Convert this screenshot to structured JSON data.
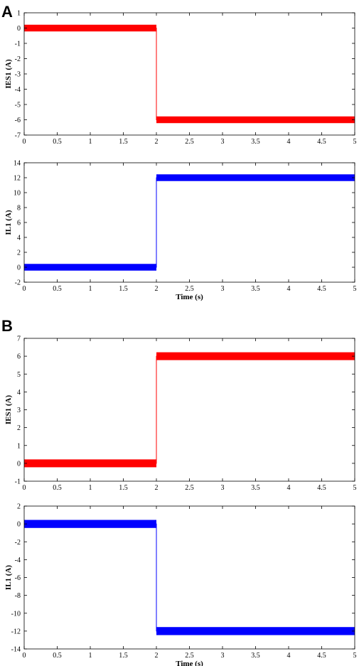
{
  "panel_labels": [
    "A",
    "B"
  ],
  "colors": {
    "red": "#ff0000",
    "blue": "#0000ff"
  },
  "chart_data": [
    {
      "type": "line",
      "panel": "A",
      "xlabel": "",
      "ylabel": "IES1 (A)",
      "xlim": [
        0,
        5
      ],
      "ylim": [
        -7,
        1
      ],
      "xticks": [
        "0",
        "0.5",
        "1",
        "1.5",
        "2",
        "2.5",
        "3",
        "3.5",
        "4",
        "4.5",
        "5"
      ],
      "yticks": [
        "1",
        "0",
        "-1",
        "-2",
        "-3",
        "-4",
        "-5",
        "-6",
        "-7"
      ],
      "grid": false,
      "series": [
        {
          "color": "#ff0000",
          "x": [
            0,
            2,
            2,
            5
          ],
          "y": [
            0,
            0,
            -6,
            -6
          ],
          "ripple": 0.22
        }
      ]
    },
    {
      "type": "line",
      "panel": "A",
      "xlabel": "Time (s)",
      "ylabel": "IL1 (A)",
      "xlim": [
        0,
        5
      ],
      "ylim": [
        -2,
        14
      ],
      "xticks": [
        "0",
        "0.5",
        "1",
        "1.5",
        "2",
        "2.5",
        "3",
        "3.5",
        "4",
        "4.5",
        "5"
      ],
      "yticks": [
        "14",
        "12",
        "10",
        "8",
        "6",
        "4",
        "2",
        "0",
        "-2"
      ],
      "grid": false,
      "series": [
        {
          "color": "#0000ff",
          "x": [
            0,
            2,
            2,
            5
          ],
          "y": [
            0,
            0,
            12,
            12
          ],
          "ripple": 0.45
        }
      ]
    },
    {
      "type": "line",
      "panel": "B",
      "xlabel": "",
      "ylabel": "IES1 (A)",
      "xlim": [
        0,
        5
      ],
      "ylim": [
        -1,
        7
      ],
      "xticks": [
        "0",
        "0.5",
        "1",
        "1.5",
        "2",
        "2.5",
        "3",
        "3.5",
        "4",
        "4.5",
        "5"
      ],
      "yticks": [
        "7",
        "6",
        "5",
        "4",
        "3",
        "2",
        "1",
        "0",
        "-1"
      ],
      "grid": false,
      "series": [
        {
          "color": "#ff0000",
          "x": [
            0,
            2,
            2,
            5
          ],
          "y": [
            0,
            0,
            6,
            6
          ],
          "ripple": 0.22
        }
      ]
    },
    {
      "type": "line",
      "panel": "B",
      "xlabel": "Time (s)",
      "ylabel": "IL1 (A)",
      "xlim": [
        0,
        5
      ],
      "ylim": [
        -14,
        2
      ],
      "xticks": [
        "0",
        "0.5",
        "1",
        "1.5",
        "2",
        "2.5",
        "3",
        "3.5",
        "4",
        "4.5",
        "5"
      ],
      "yticks": [
        "2",
        "0",
        "-2",
        "-4",
        "-6",
        "-8",
        "-10",
        "-12",
        "-14"
      ],
      "grid": false,
      "series": [
        {
          "color": "#0000ff",
          "x": [
            0,
            2,
            2,
            5
          ],
          "y": [
            0,
            0,
            -12,
            -12
          ],
          "ripple": 0.45
        }
      ]
    }
  ]
}
